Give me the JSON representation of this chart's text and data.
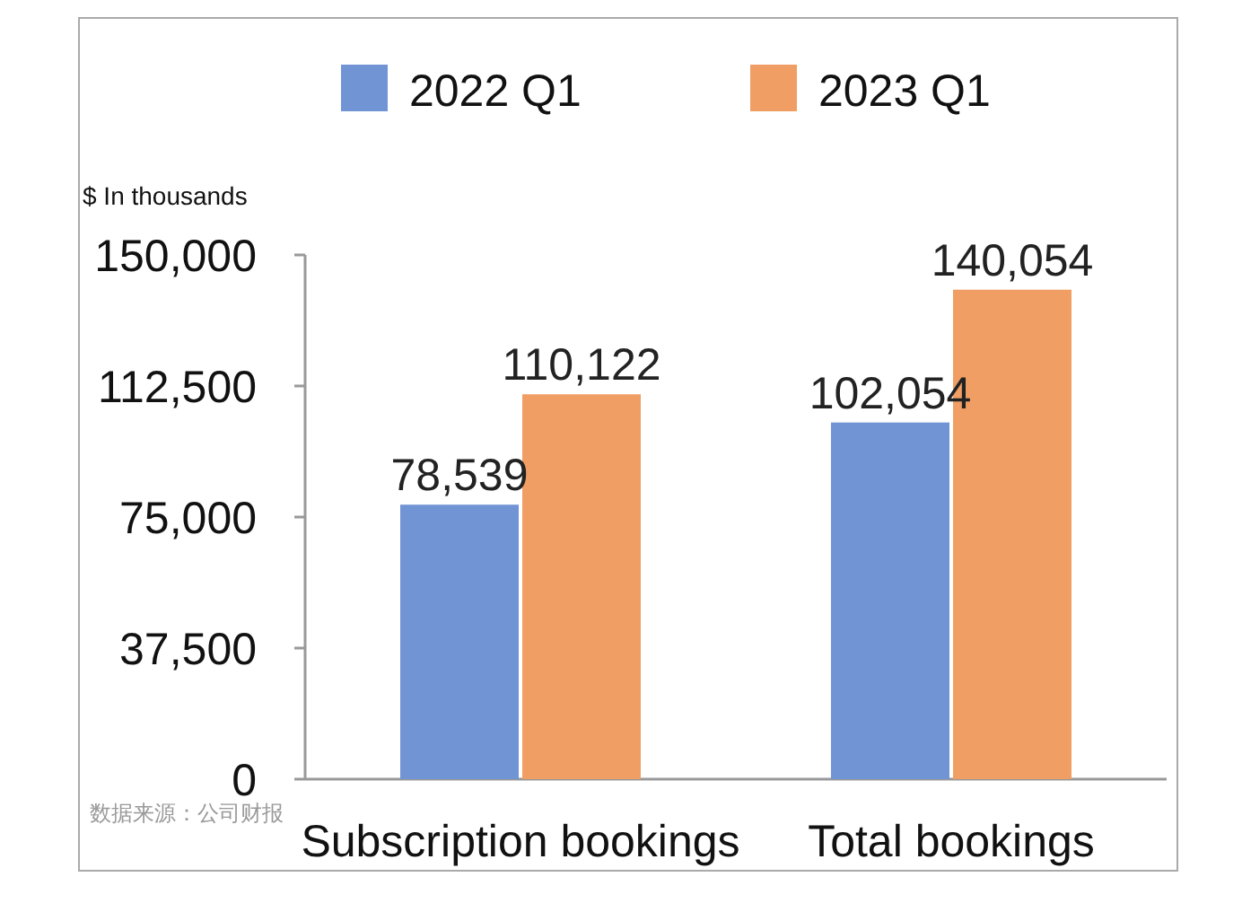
{
  "chart_data": {
    "type": "bar",
    "ylabel": "$ In thousands",
    "categories": [
      "Subscription bookings",
      "Total bookings"
    ],
    "series": [
      {
        "name": "2022 Q1",
        "color": "#7094d4",
        "values": [
          78539,
          102054
        ]
      },
      {
        "name": "2023 Q1",
        "color": "#f09e64",
        "values": [
          110122,
          140054
        ]
      }
    ],
    "ylim": [
      0,
      150000
    ],
    "yticks": [
      {
        "value": 0,
        "label": "0"
      },
      {
        "value": 37500,
        "label": "37,500"
      },
      {
        "value": 75000,
        "label": "75,000"
      },
      {
        "value": 112500,
        "label": "112,500"
      },
      {
        "value": 150000,
        "label": "150,000"
      }
    ],
    "value_labels": [
      [
        "78,539",
        "102,054"
      ],
      [
        "110,122",
        "140,054"
      ]
    ],
    "legend": "top",
    "grid": false,
    "annotations": [
      "数据来源：公司财报"
    ]
  }
}
